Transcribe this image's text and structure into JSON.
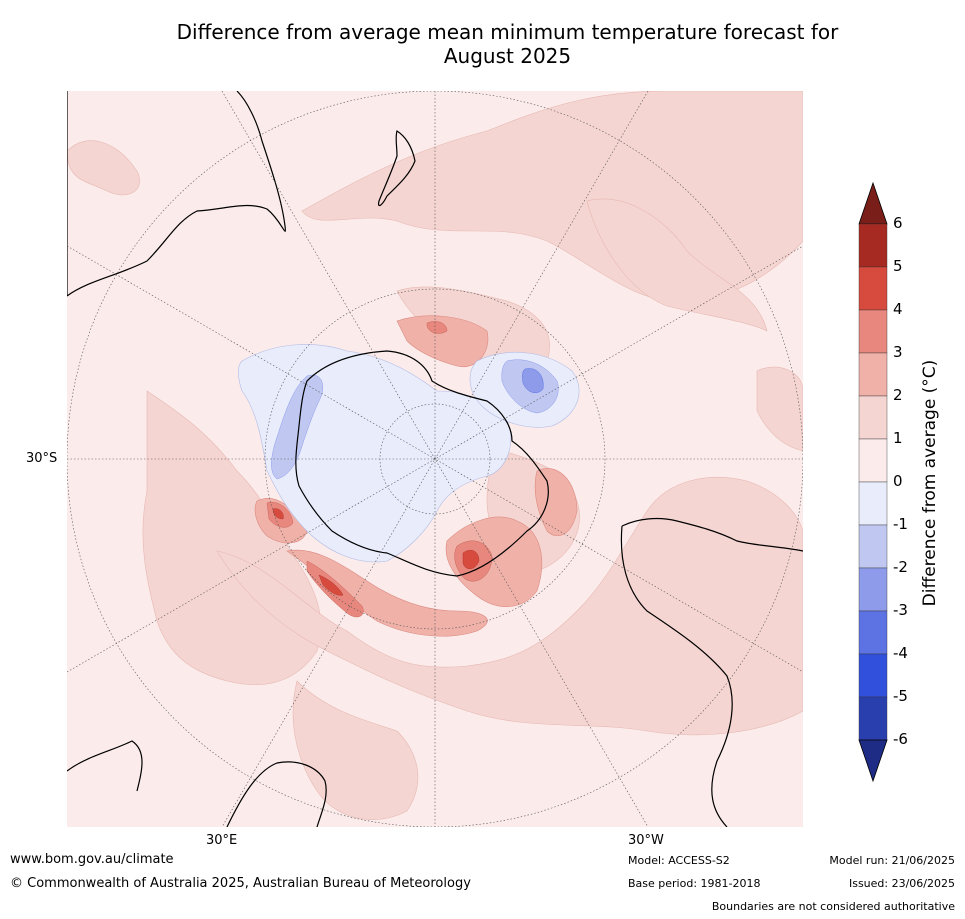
{
  "title_line1": "Difference from average mean minimum temperature forecast for",
  "title_line2": "August 2025",
  "map_labels": {
    "lat_30s": "30°S",
    "lon_30e": "30°E",
    "lon_30w": "30°W"
  },
  "colorbar": {
    "title": "Difference from average (°C)",
    "ticks": [
      "6",
      "5",
      "4",
      "3",
      "2",
      "1",
      "0",
      "-1",
      "-2",
      "-3",
      "-4",
      "-5",
      "-6"
    ],
    "bins": [
      {
        "range": "5 to 6",
        "color": "#a62a22"
      },
      {
        "range": "4 to 5",
        "color": "#d74b3f"
      },
      {
        "range": "3 to 4",
        "color": "#e8877d"
      },
      {
        "range": "2 to 3",
        "color": "#f0b1a9"
      },
      {
        "range": "1 to 2",
        "color": "#f5d5d1"
      },
      {
        "range": "0 to 1",
        "color": "#fbeceb"
      },
      {
        "range": "-1 to 0",
        "color": "#e8ecfb"
      },
      {
        "range": "-2 to -1",
        "color": "#c0c8f2"
      },
      {
        "range": "-3 to -2",
        "color": "#8d9bea"
      },
      {
        "range": "-4 to -3",
        "color": "#5d72e3"
      },
      {
        "range": "-5 to -4",
        "color": "#3150dc"
      },
      {
        "range": "-6 to -5",
        "color": "#2a3fae"
      }
    ],
    "over_color": "#7a1e19",
    "under_color": "#1e2c85"
  },
  "footer": {
    "website": "www.bom.gov.au/climate",
    "copyright": "© Commonwealth of Australia 2025, Australian Bureau of Meteorology",
    "model": "Model: ACCESS-S2",
    "base_period": "Base period: 1981-2018",
    "model_run": "Model run: 21/06/2025",
    "issued": "Issued: 23/06/2025",
    "disclaimer": "Boundaries are not considered authoritative"
  }
}
